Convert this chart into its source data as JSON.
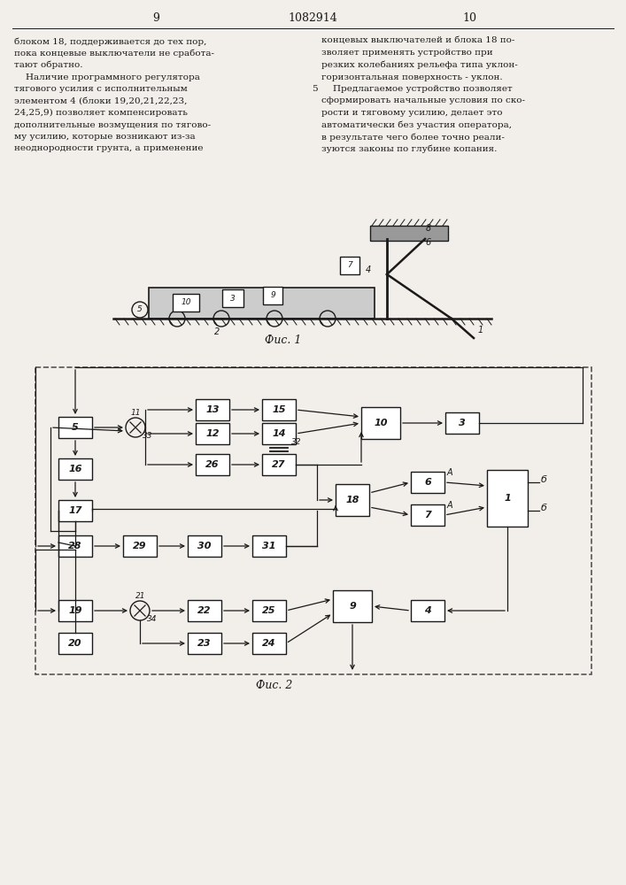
{
  "page_left": "9",
  "patent_number": "1082914",
  "page_right": "10",
  "text_left": [
    "блоком 18, поддерживается до тех пор,",
    "пока концевые выключатели не сработа-",
    "тают обратно.",
    "    Наличие программного регулятора",
    "тягового усилия с исполнительным",
    "элементом 4 (блоки 19,20,21,22,23,",
    "24,25,9) позволяет компенсировать",
    "дополнительные возмущения по тягово-",
    "му усилию, которые возникают из-за",
    "неоднородности грунта, а применение"
  ],
  "text_right": [
    "концевых выключателей и блока 18 по-",
    "зволяет применять устройство при",
    "резких колебаниях рельефа типа уклон-",
    "горизонтальная поверхность - уклон.",
    "    Предлагаемое устройство позволяет",
    "сформировать начальные условия по ско-",
    "рости и тяговому усилию, делает это",
    "автоматически без участия оператора,",
    "в результате чего более точно реали-",
    "зуются законы по глубине копания."
  ],
  "fig1_caption": "Фис. 1",
  "fig2_caption": "Фис. 2",
  "bg_color": "#f2efea",
  "line_color": "#1a1a1a",
  "box_fill": "#ffffff"
}
